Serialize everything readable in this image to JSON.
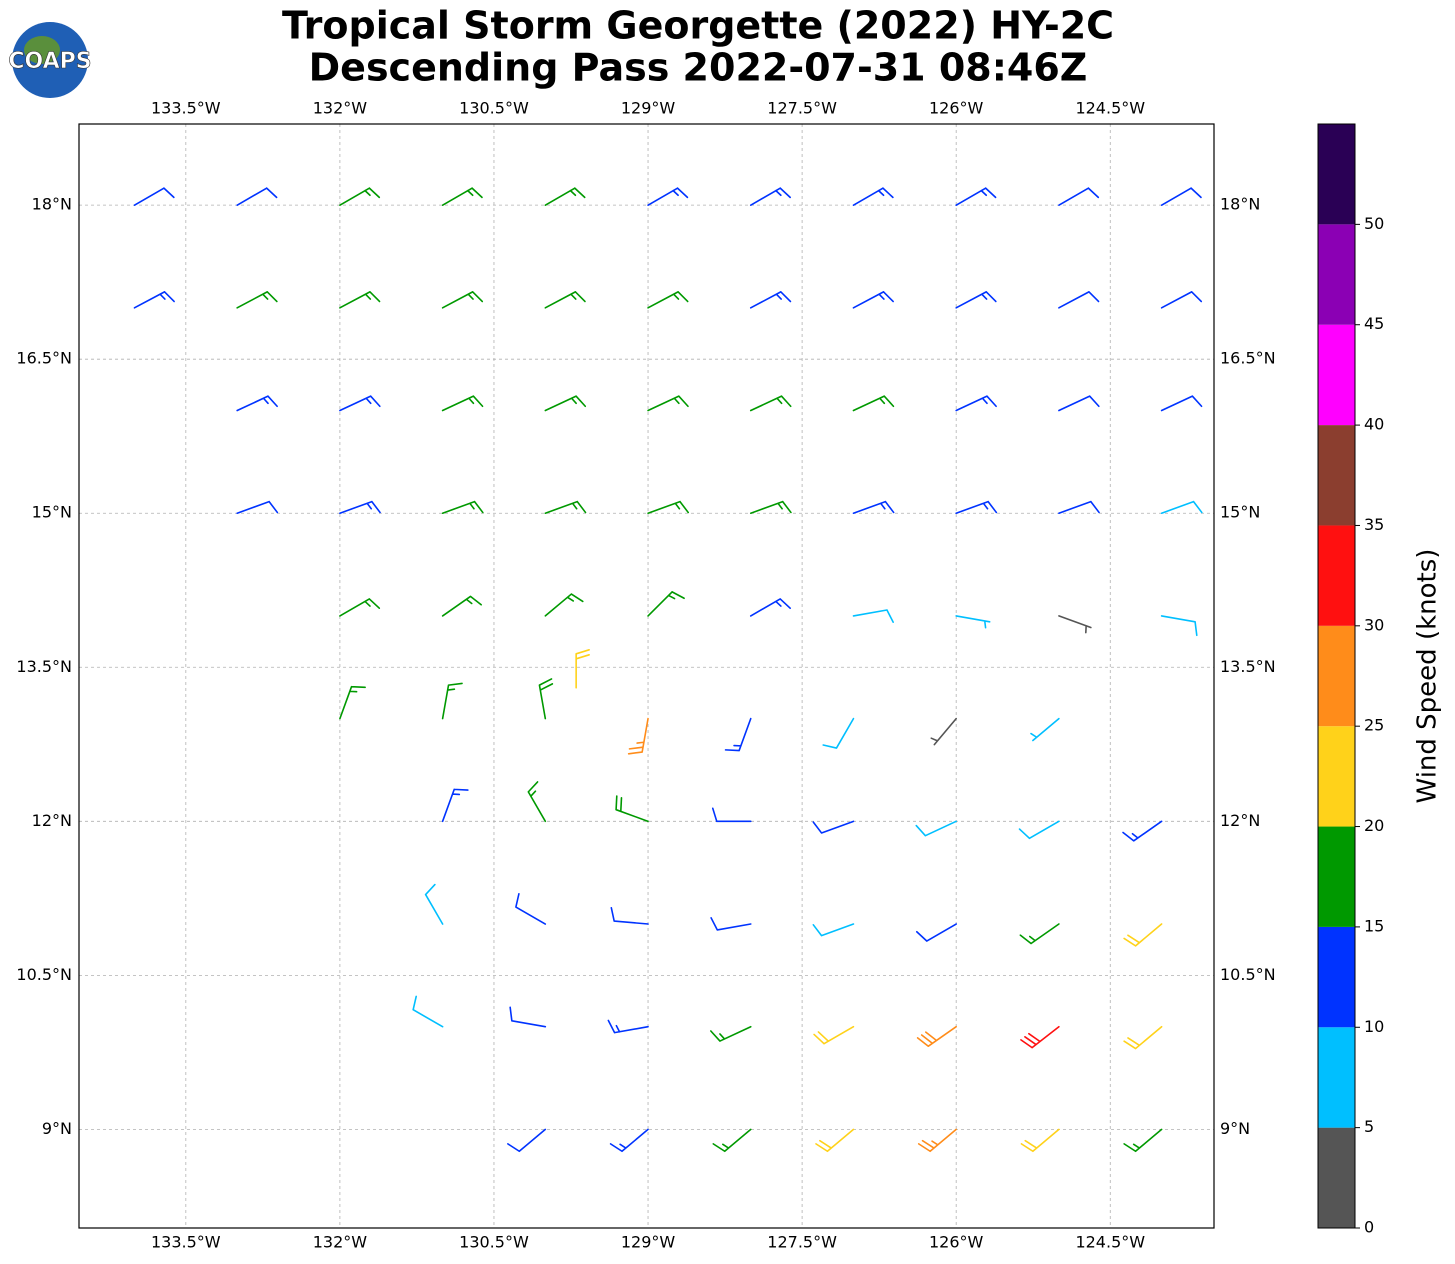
{
  "chart_data": {
    "type": "barbs",
    "title": "Tropical Storm Georgette (2022) HY-2C",
    "subtitle": "Descending Pass 2022-07-31 08:46Z",
    "logo_text": "COAPS",
    "xlim": [
      -134.54,
      -123.49
    ],
    "ylim": [
      8.04,
      18.79
    ],
    "xticks": [
      {
        "value": -133.5,
        "label": "133.5°W"
      },
      {
        "value": -132,
        "label": "132°W"
      },
      {
        "value": -130.5,
        "label": "130.5°W"
      },
      {
        "value": -129,
        "label": "129°W"
      },
      {
        "value": -127.5,
        "label": "127.5°W"
      },
      {
        "value": -126,
        "label": "126°W"
      },
      {
        "value": -124.5,
        "label": "124.5°W"
      }
    ],
    "yticks": [
      {
        "value": 9,
        "label": "9°N"
      },
      {
        "value": 10.5,
        "label": "10.5°N"
      },
      {
        "value": 12,
        "label": "12°N"
      },
      {
        "value": 13.5,
        "label": "13.5°N"
      },
      {
        "value": 15,
        "label": "15°N"
      },
      {
        "value": 16.5,
        "label": "16.5°N"
      },
      {
        "value": 18,
        "label": "18°N"
      }
    ],
    "grid": true,
    "colorbar": {
      "label": "Wind Speed (knots)",
      "levels": [
        0,
        5,
        10,
        15,
        20,
        25,
        30,
        35,
        40,
        45,
        50,
        55
      ],
      "colors": [
        "#555555",
        "#00bfff",
        "#0033ff",
        "#009900",
        "#ffd21a",
        "#ff8c1a",
        "#ff1010",
        "#8b3e2f",
        "#ff00ff",
        "#8b00b4",
        "#2a0055"
      ],
      "ticks": [
        0,
        5,
        10,
        15,
        20,
        25,
        30,
        35,
        40,
        45,
        50
      ]
    },
    "barbs": [
      {
        "lon": -134,
        "lat": 18,
        "speed": 12,
        "direction": 60
      },
      {
        "lon": -133,
        "lat": 18,
        "speed": 12,
        "direction": 60
      },
      {
        "lon": -132,
        "lat": 18,
        "speed": 16,
        "direction": 60
      },
      {
        "lon": -131,
        "lat": 18,
        "speed": 17,
        "direction": 60
      },
      {
        "lon": -130,
        "lat": 18,
        "speed": 16,
        "direction": 60
      },
      {
        "lon": -129,
        "lat": 18,
        "speed": 14,
        "direction": 60
      },
      {
        "lon": -128,
        "lat": 18,
        "speed": 13,
        "direction": 60
      },
      {
        "lon": -127,
        "lat": 18,
        "speed": 13,
        "direction": 60
      },
      {
        "lon": -126,
        "lat": 18,
        "speed": 13,
        "direction": 60
      },
      {
        "lon": -125,
        "lat": 18,
        "speed": 12,
        "direction": 60
      },
      {
        "lon": -124,
        "lat": 18,
        "speed": 12,
        "direction": 60
      },
      {
        "lon": -134,
        "lat": 17,
        "speed": 13,
        "direction": 62
      },
      {
        "lon": -133,
        "lat": 17,
        "speed": 16,
        "direction": 62
      },
      {
        "lon": -132,
        "lat": 17,
        "speed": 17,
        "direction": 62
      },
      {
        "lon": -131,
        "lat": 17,
        "speed": 17,
        "direction": 62
      },
      {
        "lon": -130,
        "lat": 17,
        "speed": 16,
        "direction": 62
      },
      {
        "lon": -129,
        "lat": 17,
        "speed": 16,
        "direction": 62
      },
      {
        "lon": -128,
        "lat": 17,
        "speed": 14,
        "direction": 62
      },
      {
        "lon": -127,
        "lat": 17,
        "speed": 13,
        "direction": 62
      },
      {
        "lon": -126,
        "lat": 17,
        "speed": 13,
        "direction": 62
      },
      {
        "lon": -125,
        "lat": 17,
        "speed": 12,
        "direction": 62
      },
      {
        "lon": -124,
        "lat": 17,
        "speed": 12,
        "direction": 62
      },
      {
        "lon": -133,
        "lat": 16,
        "speed": 13,
        "direction": 65
      },
      {
        "lon": -132,
        "lat": 16,
        "speed": 13,
        "direction": 65
      },
      {
        "lon": -131,
        "lat": 16,
        "speed": 17,
        "direction": 65
      },
      {
        "lon": -130,
        "lat": 16,
        "speed": 17,
        "direction": 65
      },
      {
        "lon": -129,
        "lat": 16,
        "speed": 17,
        "direction": 65
      },
      {
        "lon": -128,
        "lat": 16,
        "speed": 16,
        "direction": 65
      },
      {
        "lon": -127,
        "lat": 16,
        "speed": 15,
        "direction": 65
      },
      {
        "lon": -126,
        "lat": 16,
        "speed": 14,
        "direction": 65
      },
      {
        "lon": -125,
        "lat": 16,
        "speed": 12,
        "direction": 65
      },
      {
        "lon": -124,
        "lat": 16,
        "speed": 10,
        "direction": 65
      },
      {
        "lon": -133,
        "lat": 15,
        "speed": 12,
        "direction": 70
      },
      {
        "lon": -132,
        "lat": 15,
        "speed": 14,
        "direction": 70
      },
      {
        "lon": -131,
        "lat": 15,
        "speed": 17,
        "direction": 70
      },
      {
        "lon": -130,
        "lat": 15,
        "speed": 17,
        "direction": 70
      },
      {
        "lon": -129,
        "lat": 15,
        "speed": 17,
        "direction": 70
      },
      {
        "lon": -128,
        "lat": 15,
        "speed": 16,
        "direction": 70
      },
      {
        "lon": -127,
        "lat": 15,
        "speed": 14,
        "direction": 70
      },
      {
        "lon": -126,
        "lat": 15,
        "speed": 13,
        "direction": 70
      },
      {
        "lon": -125,
        "lat": 15,
        "speed": 12,
        "direction": 70
      },
      {
        "lon": -124,
        "lat": 15,
        "speed": 8,
        "direction": 70
      },
      {
        "lon": -132,
        "lat": 14,
        "speed": 16,
        "direction": 60
      },
      {
        "lon": -131,
        "lat": 14,
        "speed": 17,
        "direction": 55
      },
      {
        "lon": -130,
        "lat": 14,
        "speed": 17,
        "direction": 50
      },
      {
        "lon": -129,
        "lat": 14,
        "speed": 16,
        "direction": 45
      },
      {
        "lon": -128,
        "lat": 14,
        "speed": 13,
        "direction": 60
      },
      {
        "lon": -127,
        "lat": 14,
        "speed": 8,
        "direction": 80
      },
      {
        "lon": -126,
        "lat": 14,
        "speed": 6,
        "direction": 100
      },
      {
        "lon": -125,
        "lat": 14,
        "speed": 4,
        "direction": 110
      },
      {
        "lon": -124,
        "lat": 14,
        "speed": 8,
        "direction": 100
      },
      {
        "lon": -132,
        "lat": 13,
        "speed": 17,
        "direction": 20
      },
      {
        "lon": -131,
        "lat": 13,
        "speed": 17,
        "direction": 10
      },
      {
        "lon": -130,
        "lat": 13,
        "speed": 18,
        "direction": 350
      },
      {
        "lon": -129.7,
        "lat": 13.3,
        "speed": 22,
        "direction": 0
      },
      {
        "lon": -129,
        "lat": 13,
        "speed": 27,
        "direction": 190
      },
      {
        "lon": -128,
        "lat": 13,
        "speed": 14,
        "direction": 200
      },
      {
        "lon": -127,
        "lat": 13,
        "speed": 8,
        "direction": 210
      },
      {
        "lon": -126,
        "lat": 13,
        "speed": 4,
        "direction": 220
      },
      {
        "lon": -125,
        "lat": 13,
        "speed": 6,
        "direction": 230
      },
      {
        "lon": -131,
        "lat": 12,
        "speed": 14,
        "direction": 20
      },
      {
        "lon": -130,
        "lat": 12,
        "speed": 16,
        "direction": 330
      },
      {
        "lon": -129,
        "lat": 12,
        "speed": 18,
        "direction": 290
      },
      {
        "lon": -128,
        "lat": 12,
        "speed": 12,
        "direction": 270
      },
      {
        "lon": -127,
        "lat": 12,
        "speed": 10,
        "direction": 250
      },
      {
        "lon": -126,
        "lat": 12,
        "speed": 9,
        "direction": 245
      },
      {
        "lon": -125,
        "lat": 12,
        "speed": 8,
        "direction": 240
      },
      {
        "lon": -124,
        "lat": 12,
        "speed": 13,
        "direction": 235
      },
      {
        "lon": -131,
        "lat": 11,
        "speed": 9,
        "direction": 330
      },
      {
        "lon": -130,
        "lat": 11,
        "speed": 12,
        "direction": 300
      },
      {
        "lon": -129,
        "lat": 11,
        "speed": 12,
        "direction": 275
      },
      {
        "lon": -128,
        "lat": 11,
        "speed": 11,
        "direction": 260
      },
      {
        "lon": -127,
        "lat": 11,
        "speed": 9,
        "direction": 250
      },
      {
        "lon": -126,
        "lat": 11,
        "speed": 12,
        "direction": 240
      },
      {
        "lon": -125,
        "lat": 11,
        "speed": 17,
        "direction": 235
      },
      {
        "lon": -124,
        "lat": 11,
        "speed": 22,
        "direction": 230
      },
      {
        "lon": -131,
        "lat": 10,
        "speed": 8,
        "direction": 300
      },
      {
        "lon": -130,
        "lat": 10,
        "speed": 12,
        "direction": 280
      },
      {
        "lon": -129,
        "lat": 10,
        "speed": 14,
        "direction": 260
      },
      {
        "lon": -128,
        "lat": 10,
        "speed": 17,
        "direction": 245
      },
      {
        "lon": -127,
        "lat": 10,
        "speed": 22,
        "direction": 240
      },
      {
        "lon": -126,
        "lat": 10,
        "speed": 28,
        "direction": 235
      },
      {
        "lon": -125,
        "lat": 10,
        "speed": 32,
        "direction": 232
      },
      {
        "lon": -124,
        "lat": 10,
        "speed": 20,
        "direction": 230
      },
      {
        "lon": -130,
        "lat": 9,
        "speed": 12,
        "direction": 230
      },
      {
        "lon": -129,
        "lat": 9,
        "speed": 13,
        "direction": 230
      },
      {
        "lon": -128,
        "lat": 9,
        "speed": 16,
        "direction": 230
      },
      {
        "lon": -127,
        "lat": 9,
        "speed": 20,
        "direction": 230
      },
      {
        "lon": -126,
        "lat": 9,
        "speed": 27,
        "direction": 230
      },
      {
        "lon": -125,
        "lat": 9,
        "speed": 22,
        "direction": 230
      },
      {
        "lon": -124,
        "lat": 9,
        "speed": 17,
        "direction": 230
      }
    ]
  }
}
